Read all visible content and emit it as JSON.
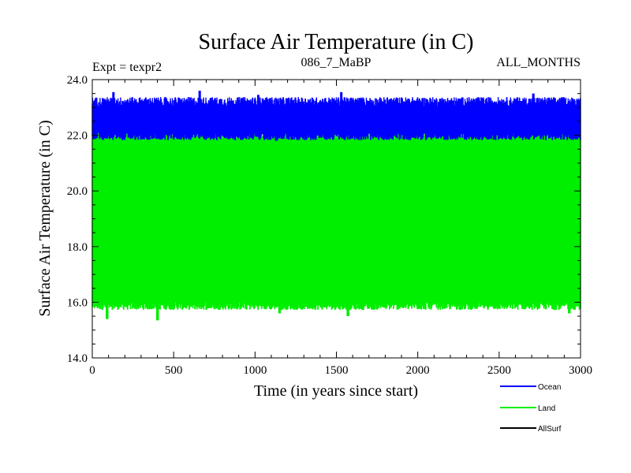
{
  "chart_data": {
    "type": "line",
    "title": "Surface Air Temperature (in C)",
    "subtitle_left": "Expt = texpr2",
    "subtitle_center": "086_7_MaBP",
    "subtitle_right": "ALL_MONTHS",
    "xlabel": "Time (in years since start)",
    "ylabel": "Surface Air Temperature (in C)",
    "xlim": [
      0,
      3000
    ],
    "ylim": [
      14.0,
      24.0
    ],
    "x_ticks": [
      "0",
      "500",
      "1000",
      "1500",
      "2000",
      "2500",
      "3000"
    ],
    "y_ticks": [
      "14.0",
      "16.0",
      "18.0",
      "20.0",
      "22.0",
      "24.0"
    ],
    "grid": false,
    "legend_position": "bottom-right",
    "series": [
      {
        "name": "Ocean",
        "color": "#0000ff",
        "band_low": 22.0,
        "band_high": 23.2,
        "peaks": [
          {
            "x": 130,
            "y": 23.55
          },
          {
            "x": 660,
            "y": 23.6
          },
          {
            "x": 1020,
            "y": 23.45
          },
          {
            "x": 1530,
            "y": 23.55
          },
          {
            "x": 2710,
            "y": 23.5
          }
        ],
        "troughs": [
          {
            "x": 300,
            "y": 21.85
          },
          {
            "x": 1130,
            "y": 21.8
          },
          {
            "x": 2430,
            "y": 21.85
          }
        ]
      },
      {
        "name": "Land",
        "color": "#00ee00",
        "band_low": 15.9,
        "band_high": 22.0,
        "peaks": [
          {
            "x": 500,
            "y": 22.25
          },
          {
            "x": 2500,
            "y": 22.2
          }
        ],
        "troughs": [
          {
            "x": 90,
            "y": 15.4
          },
          {
            "x": 400,
            "y": 15.35
          },
          {
            "x": 1150,
            "y": 15.6
          },
          {
            "x": 1570,
            "y": 15.5
          },
          {
            "x": 2930,
            "y": 15.6
          }
        ]
      },
      {
        "name": "AllSurf",
        "color": "#000000"
      }
    ]
  }
}
